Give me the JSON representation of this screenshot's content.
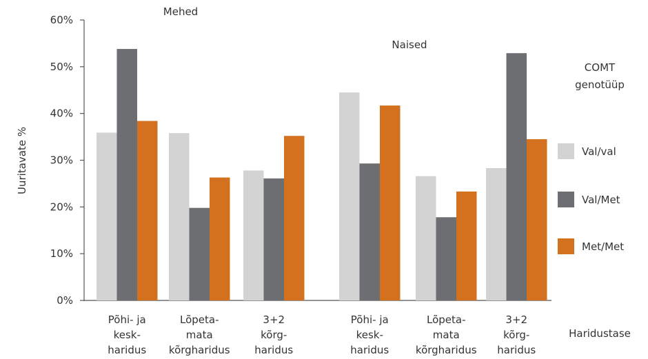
{
  "chart_data": {
    "type": "bar",
    "ylabel": "Uuritavate %",
    "xlabel": "Haridustase",
    "ylim": [
      0,
      60
    ],
    "yticks": [
      0,
      10,
      20,
      30,
      40,
      50,
      60
    ],
    "ytick_labels": [
      "0%",
      "10%",
      "20%",
      "30%",
      "40%",
      "50%",
      "60%"
    ],
    "legend": {
      "title_lines": [
        "COMT",
        "genotüüp"
      ],
      "position": "right"
    },
    "groups": [
      {
        "name": "Mehed",
        "categories": [
          {
            "label_lines": [
              "Põhi- ja",
              "kesk-",
              "haridus"
            ]
          },
          {
            "label_lines": [
              "Lõpeta-",
              "mata",
              "kõrgharidus"
            ]
          },
          {
            "label_lines": [
              "3+2",
              "kõrg-",
              "haridus"
            ]
          }
        ]
      },
      {
        "name": "Naised",
        "categories": [
          {
            "label_lines": [
              "Põhi- ja",
              "kesk-",
              "haridus"
            ]
          },
          {
            "label_lines": [
              "Lõpeta-",
              "mata",
              "kõrgharidus"
            ]
          },
          {
            "label_lines": [
              "3+2",
              "kõrg-",
              "haridus"
            ]
          }
        ]
      }
    ],
    "series": [
      {
        "name": "Val/val",
        "color": "#d3d3d4",
        "values": [
          35.9,
          35.8,
          27.8,
          44.5,
          26.6,
          28.3
        ]
      },
      {
        "name": "Val/Met",
        "color": "#6d6e71",
        "values": [
          53.8,
          19.8,
          26.1,
          29.3,
          17.8,
          52.9
        ]
      },
      {
        "name": "Met/Met",
        "color": "#d3711e",
        "values": [
          38.4,
          26.3,
          35.2,
          41.7,
          23.3,
          34.5
        ]
      }
    ]
  }
}
